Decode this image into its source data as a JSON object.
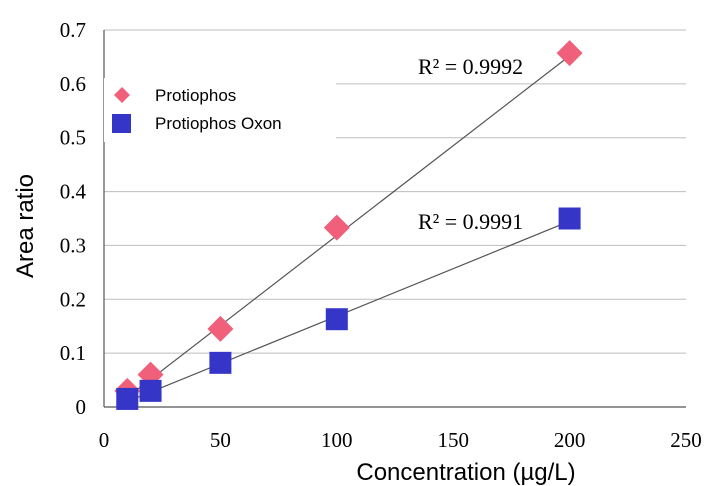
{
  "chart_data": {
    "type": "scatter",
    "xlabel": "Concentration (µg/L)",
    "ylabel": "Area ratio",
    "xlim": [
      0,
      250
    ],
    "ylim": [
      0,
      0.7
    ],
    "xticks": [
      "0",
      "50",
      "100",
      "150",
      "200",
      "250"
    ],
    "yticks": [
      "0",
      "0.1",
      "0.2",
      "0.3",
      "0.4",
      "0.5",
      "0.6",
      "0.7"
    ],
    "grid": "horizontal",
    "legend": "top-left",
    "series": [
      {
        "name": "Protiophos",
        "marker": "diamond",
        "color": "#f0607a",
        "x": [
          10,
          20,
          50,
          100,
          200
        ],
        "y": [
          0.03,
          0.06,
          0.145,
          0.333,
          0.657
        ],
        "trendline": {
          "x": [
            10,
            200
          ],
          "y": [
            0.018,
            0.652
          ]
        },
        "r2_label": "R² = 0.9992"
      },
      {
        "name": "Protiophos Oxon",
        "marker": "square",
        "color": "#3535c8",
        "x": [
          10,
          20,
          50,
          100,
          200
        ],
        "y": [
          0.015,
          0.03,
          0.082,
          0.163,
          0.35
        ],
        "trendline": {
          "x": [
            10,
            200
          ],
          "y": [
            0.01,
            0.345
          ]
        },
        "r2_label": "R² = 0.9991"
      }
    ]
  }
}
